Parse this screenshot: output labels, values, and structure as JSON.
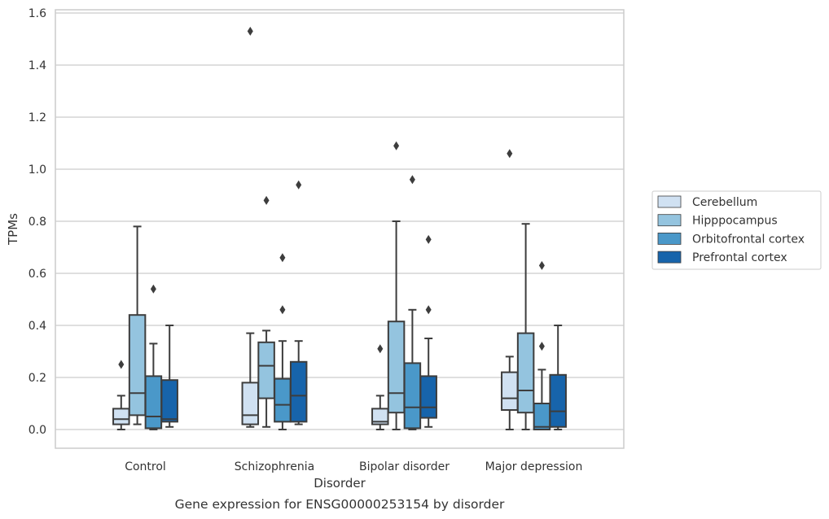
{
  "chart_data": {
    "type": "box",
    "title": "",
    "caption": "Gene expression for ENSG00000253154 by disorder",
    "xlabel": "Disorder",
    "ylabel": "TPMs",
    "ylim": [
      -0.07,
      1.61
    ],
    "yticks": [
      "0.0",
      "0.2",
      "0.4",
      "0.6",
      "0.8",
      "1.0",
      "1.2",
      "1.4",
      "1.6"
    ],
    "grid": "horizontal",
    "legend_position": "right",
    "categories": [
      "Control",
      "Schizophrenia",
      "Bipolar disorder",
      "Major depression"
    ],
    "series": [
      {
        "name": "Cerebellum",
        "color": "#d0e1f2",
        "boxes": [
          {
            "whislo": 0.0,
            "q1": 0.02,
            "med": 0.04,
            "q3": 0.08,
            "whishi": 0.13,
            "fliers": [
              0.25
            ]
          },
          {
            "whislo": 0.01,
            "q1": 0.02,
            "med": 0.055,
            "q3": 0.18,
            "whishi": 0.37,
            "fliers": [
              1.53
            ]
          },
          {
            "whislo": 0.0,
            "q1": 0.02,
            "med": 0.03,
            "q3": 0.08,
            "whishi": 0.13,
            "fliers": [
              0.31
            ]
          },
          {
            "whislo": 0.0,
            "q1": 0.075,
            "med": 0.12,
            "q3": 0.22,
            "whishi": 0.28,
            "fliers": [
              1.06
            ]
          }
        ]
      },
      {
        "name": "Hipppocampus",
        "color": "#94c4df",
        "boxes": [
          {
            "whislo": 0.02,
            "q1": 0.055,
            "med": 0.14,
            "q3": 0.44,
            "whishi": 0.78,
            "fliers": []
          },
          {
            "whislo": 0.01,
            "q1": 0.12,
            "med": 0.245,
            "q3": 0.335,
            "whishi": 0.38,
            "fliers": [
              0.88
            ]
          },
          {
            "whislo": 0.0,
            "q1": 0.065,
            "med": 0.14,
            "q3": 0.415,
            "whishi": 0.8,
            "fliers": [
              1.09
            ]
          },
          {
            "whislo": 0.0,
            "q1": 0.065,
            "med": 0.15,
            "q3": 0.37,
            "whishi": 0.79,
            "fliers": []
          }
        ]
      },
      {
        "name": "Orbitofrontal cortex",
        "color": "#4a98c9",
        "boxes": [
          {
            "whislo": 0.0,
            "q1": 0.005,
            "med": 0.05,
            "q3": 0.205,
            "whishi": 0.33,
            "fliers": [
              0.54
            ]
          },
          {
            "whislo": 0.0,
            "q1": 0.03,
            "med": 0.095,
            "q3": 0.195,
            "whishi": 0.34,
            "fliers": [
              0.66,
              0.46
            ]
          },
          {
            "whislo": 0.0,
            "q1": 0.005,
            "med": 0.085,
            "q3": 0.255,
            "whishi": 0.46,
            "fliers": [
              0.96
            ]
          },
          {
            "whislo": 0.0,
            "q1": 0.0,
            "med": 0.01,
            "q3": 0.1,
            "whishi": 0.23,
            "fliers": [
              0.63,
              0.32
            ]
          }
        ]
      },
      {
        "name": "Prefrontal cortex",
        "color": "#1764ab",
        "boxes": [
          {
            "whislo": 0.01,
            "q1": 0.03,
            "med": 0.04,
            "q3": 0.19,
            "whishi": 0.4,
            "fliers": []
          },
          {
            "whislo": 0.02,
            "q1": 0.03,
            "med": 0.13,
            "q3": 0.26,
            "whishi": 0.34,
            "fliers": [
              0.94
            ]
          },
          {
            "whislo": 0.01,
            "q1": 0.045,
            "med": 0.085,
            "q3": 0.205,
            "whishi": 0.35,
            "fliers": [
              0.73,
              0.46
            ]
          },
          {
            "whislo": 0.0,
            "q1": 0.01,
            "med": 0.07,
            "q3": 0.21,
            "whishi": 0.4,
            "fliers": []
          }
        ]
      }
    ]
  }
}
